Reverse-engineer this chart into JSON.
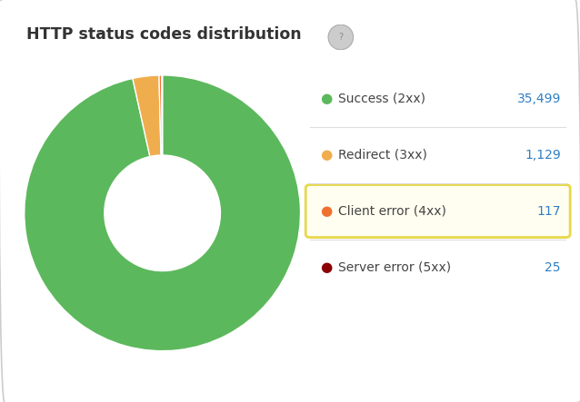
{
  "title": "HTTP status codes distribution",
  "values": [
    35499,
    1129,
    117,
    25
  ],
  "labels": [
    "Success (2xx)",
    "Redirect (3xx)",
    "Client error (4xx)",
    "Server error (5xx)"
  ],
  "counts": [
    "35,499",
    "1,129",
    "117",
    "25"
  ],
  "wedge_colors": [
    "#5cb85c",
    "#f0ad4e",
    "#f07030",
    "#8b0000"
  ],
  "bg_color": "#ffffff",
  "border_color": "#cccccc",
  "title_color": "#333333",
  "label_color": "#444444",
  "count_color": "#2e7ec4",
  "highlight_box_edge": "#e8d84a",
  "highlight_box_face": "#fffef0",
  "highlight_index": 2,
  "legend_dot_colors": [
    "#5cb85c",
    "#f0ad4e",
    "#f07030",
    "#8b0000"
  ]
}
